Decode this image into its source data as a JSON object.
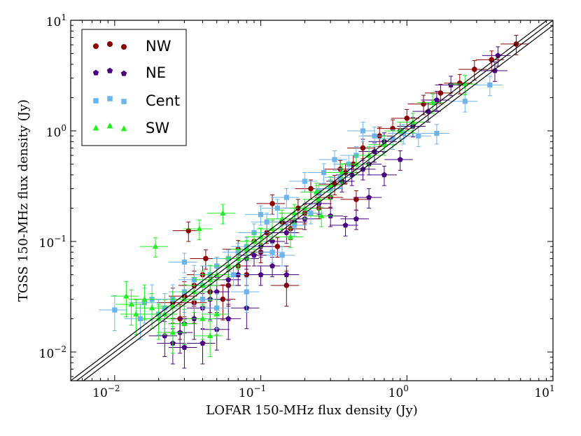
{
  "chart_data": {
    "type": "scatter",
    "xscale": "log",
    "yscale": "log",
    "xlabel": "LOFAR 150-MHz flux density (Jy)",
    "ylabel": "TGSS 150-MHz flux density (Jy)",
    "xlim": [
      0.005,
      10
    ],
    "ylim": [
      0.0055,
      10
    ],
    "xticks": [
      {
        "value": 0.01,
        "base": "10",
        "exp": "−2"
      },
      {
        "value": 0.1,
        "base": "10",
        "exp": "−1"
      },
      {
        "value": 1,
        "base": "10",
        "exp": "0"
      },
      {
        "value": 10,
        "base": "10",
        "exp": "1"
      }
    ],
    "yticks": [
      {
        "value": 0.01,
        "base": "10",
        "exp": "−2"
      },
      {
        "value": 0.1,
        "base": "10",
        "exp": "−1"
      },
      {
        "value": 1,
        "base": "10",
        "exp": "0"
      },
      {
        "value": 10,
        "base": "10",
        "exp": "1"
      }
    ],
    "reference_lines": [
      {
        "name": "one-to-one",
        "ratio": 1.0
      },
      {
        "name": "upper-10pct",
        "ratio": 1.1
      },
      {
        "name": "lower-10pct",
        "ratio": 0.9
      }
    ],
    "legend_position": "top-left",
    "series": [
      {
        "name": "NW",
        "marker": "circle",
        "color": "#8b0000",
        "points": [
          [
            5.6,
            6.1
          ],
          [
            3.8,
            4.4
          ],
          [
            2.9,
            3.6
          ],
          [
            2.3,
            2.7
          ],
          [
            1.7,
            2.2
          ],
          [
            1.3,
            1.75
          ],
          [
            1.0,
            1.3
          ],
          [
            0.8,
            1.05
          ],
          [
            0.65,
            0.9
          ],
          [
            0.5,
            0.7
          ],
          [
            0.43,
            0.5
          ],
          [
            0.38,
            0.42
          ],
          [
            0.32,
            0.33
          ],
          [
            0.45,
            0.24
          ],
          [
            0.3,
            0.25
          ],
          [
            0.22,
            0.3
          ],
          [
            0.18,
            0.2
          ],
          [
            0.14,
            0.15
          ],
          [
            0.11,
            0.12
          ],
          [
            0.09,
            0.1
          ],
          [
            0.07,
            0.085
          ],
          [
            0.06,
            0.07
          ],
          [
            0.05,
            0.06
          ],
          [
            0.04,
            0.05
          ],
          [
            0.035,
            0.04
          ],
          [
            0.03,
            0.032
          ],
          [
            0.025,
            0.028
          ],
          [
            0.032,
            0.125
          ],
          [
            0.13,
            0.09
          ],
          [
            0.1,
            0.08
          ],
          [
            0.08,
            0.05
          ],
          [
            0.06,
            0.04
          ],
          [
            0.045,
            0.035
          ],
          [
            0.035,
            0.028
          ],
          [
            0.028,
            0.02
          ],
          [
            0.15,
            0.04
          ],
          [
            0.055,
            0.03
          ],
          [
            0.07,
            0.06
          ],
          [
            0.12,
            0.22
          ],
          [
            0.2,
            0.18
          ],
          [
            0.25,
            0.2
          ],
          [
            0.35,
            0.45
          ],
          [
            0.16,
            0.13
          ],
          [
            0.042,
            0.07
          ]
        ]
      },
      {
        "name": "NE",
        "marker": "pentagon",
        "color": "#4b0082",
        "points": [
          [
            4.2,
            4.8
          ],
          [
            4.0,
            3.5
          ],
          [
            2.0,
            2.6
          ],
          [
            1.6,
            1.9
          ],
          [
            1.4,
            1.5
          ],
          [
            1.1,
            1.1
          ],
          [
            0.9,
            1.0
          ],
          [
            0.7,
            0.8
          ],
          [
            0.6,
            0.65
          ],
          [
            0.55,
            0.5
          ],
          [
            0.5,
            0.45
          ],
          [
            0.42,
            0.4
          ],
          [
            0.36,
            0.35
          ],
          [
            0.3,
            0.3
          ],
          [
            0.25,
            0.22
          ],
          [
            0.2,
            0.16
          ],
          [
            0.17,
            0.15
          ],
          [
            0.15,
            0.12
          ],
          [
            0.12,
            0.1
          ],
          [
            0.1,
            0.09
          ],
          [
            0.09,
            0.075
          ],
          [
            0.08,
            0.07
          ],
          [
            0.07,
            0.05
          ],
          [
            0.06,
            0.045
          ],
          [
            0.05,
            0.035
          ],
          [
            0.045,
            0.03
          ],
          [
            0.04,
            0.025
          ],
          [
            0.035,
            0.02
          ],
          [
            0.03,
            0.018
          ],
          [
            0.028,
            0.015
          ],
          [
            0.025,
            0.012
          ],
          [
            0.022,
            0.014
          ],
          [
            0.03,
            0.011
          ],
          [
            0.04,
            0.012
          ],
          [
            0.05,
            0.016
          ],
          [
            0.06,
            0.02
          ],
          [
            0.08,
            0.025
          ],
          [
            0.1,
            0.05
          ],
          [
            0.12,
            0.06
          ],
          [
            0.15,
            0.05
          ],
          [
            0.3,
            0.17
          ],
          [
            0.45,
            0.16
          ],
          [
            0.38,
            0.14
          ],
          [
            0.7,
            0.4
          ],
          [
            0.9,
            0.55
          ],
          [
            0.55,
            0.25
          ]
        ]
      },
      {
        "name": "Cent",
        "marker": "square",
        "color": "#6cb4ee",
        "points": [
          [
            3.7,
            2.6
          ],
          [
            2.5,
            1.85
          ],
          [
            1.6,
            0.95
          ],
          [
            1.2,
            0.9
          ],
          [
            0.95,
            0.95
          ],
          [
            0.8,
            0.85
          ],
          [
            0.6,
            0.9
          ],
          [
            0.5,
            1.0
          ],
          [
            0.45,
            0.6
          ],
          [
            0.4,
            0.5
          ],
          [
            0.35,
            0.38
          ],
          [
            0.3,
            0.3
          ],
          [
            0.25,
            0.28
          ],
          [
            0.2,
            0.35
          ],
          [
            0.15,
            0.25
          ],
          [
            0.13,
            0.2
          ],
          [
            0.11,
            0.15
          ],
          [
            0.09,
            0.12
          ],
          [
            0.08,
            0.09
          ],
          [
            0.07,
            0.08
          ],
          [
            0.06,
            0.07
          ],
          [
            0.05,
            0.06
          ],
          [
            0.045,
            0.05
          ],
          [
            0.04,
            0.04
          ],
          [
            0.035,
            0.045
          ],
          [
            0.03,
            0.035
          ],
          [
            0.025,
            0.03
          ],
          [
            0.022,
            0.025
          ],
          [
            0.02,
            0.022
          ],
          [
            0.018,
            0.03
          ],
          [
            0.016,
            0.028
          ],
          [
            0.015,
            0.02
          ],
          [
            0.01,
            0.024
          ],
          [
            0.17,
            0.14
          ],
          [
            0.22,
            0.18
          ],
          [
            0.32,
            0.55
          ],
          [
            0.27,
            0.42
          ],
          [
            0.12,
            0.08
          ],
          [
            0.14,
            0.075
          ],
          [
            0.03,
            0.065
          ],
          [
            0.1,
            0.175
          ],
          [
            0.05,
            0.025
          ],
          [
            0.04,
            0.03
          ],
          [
            0.065,
            0.05
          ],
          [
            0.08,
            0.035
          ]
        ]
      },
      {
        "name": "SW",
        "marker": "triangle",
        "color": "#22ee22",
        "points": [
          [
            2.5,
            2.65
          ],
          [
            1.5,
            1.8
          ],
          [
            1.1,
            1.2
          ],
          [
            0.9,
            1.0
          ],
          [
            0.7,
            0.75
          ],
          [
            0.55,
            0.6
          ],
          [
            0.45,
            0.5
          ],
          [
            0.36,
            0.42
          ],
          [
            0.3,
            0.32
          ],
          [
            0.25,
            0.24
          ],
          [
            0.2,
            0.2
          ],
          [
            0.17,
            0.18
          ],
          [
            0.14,
            0.16
          ],
          [
            0.12,
            0.13
          ],
          [
            0.1,
            0.11
          ],
          [
            0.09,
            0.1
          ],
          [
            0.08,
            0.085
          ],
          [
            0.07,
            0.07
          ],
          [
            0.06,
            0.06
          ],
          [
            0.05,
            0.05
          ],
          [
            0.045,
            0.045
          ],
          [
            0.04,
            0.04
          ],
          [
            0.035,
            0.035
          ],
          [
            0.03,
            0.03
          ],
          [
            0.025,
            0.026
          ],
          [
            0.022,
            0.022
          ],
          [
            0.02,
            0.02
          ],
          [
            0.018,
            0.025
          ],
          [
            0.016,
            0.03
          ],
          [
            0.014,
            0.022
          ],
          [
            0.012,
            0.032
          ],
          [
            0.013,
            0.027
          ],
          [
            0.019,
            0.09
          ],
          [
            0.038,
            0.13
          ],
          [
            0.055,
            0.18
          ],
          [
            0.26,
            0.17
          ],
          [
            0.16,
            0.11
          ],
          [
            0.03,
            0.018
          ],
          [
            0.04,
            0.02
          ],
          [
            0.045,
            0.014
          ],
          [
            0.05,
            0.022
          ],
          [
            0.025,
            0.015
          ],
          [
            0.24,
            0.28
          ]
        ]
      }
    ]
  }
}
